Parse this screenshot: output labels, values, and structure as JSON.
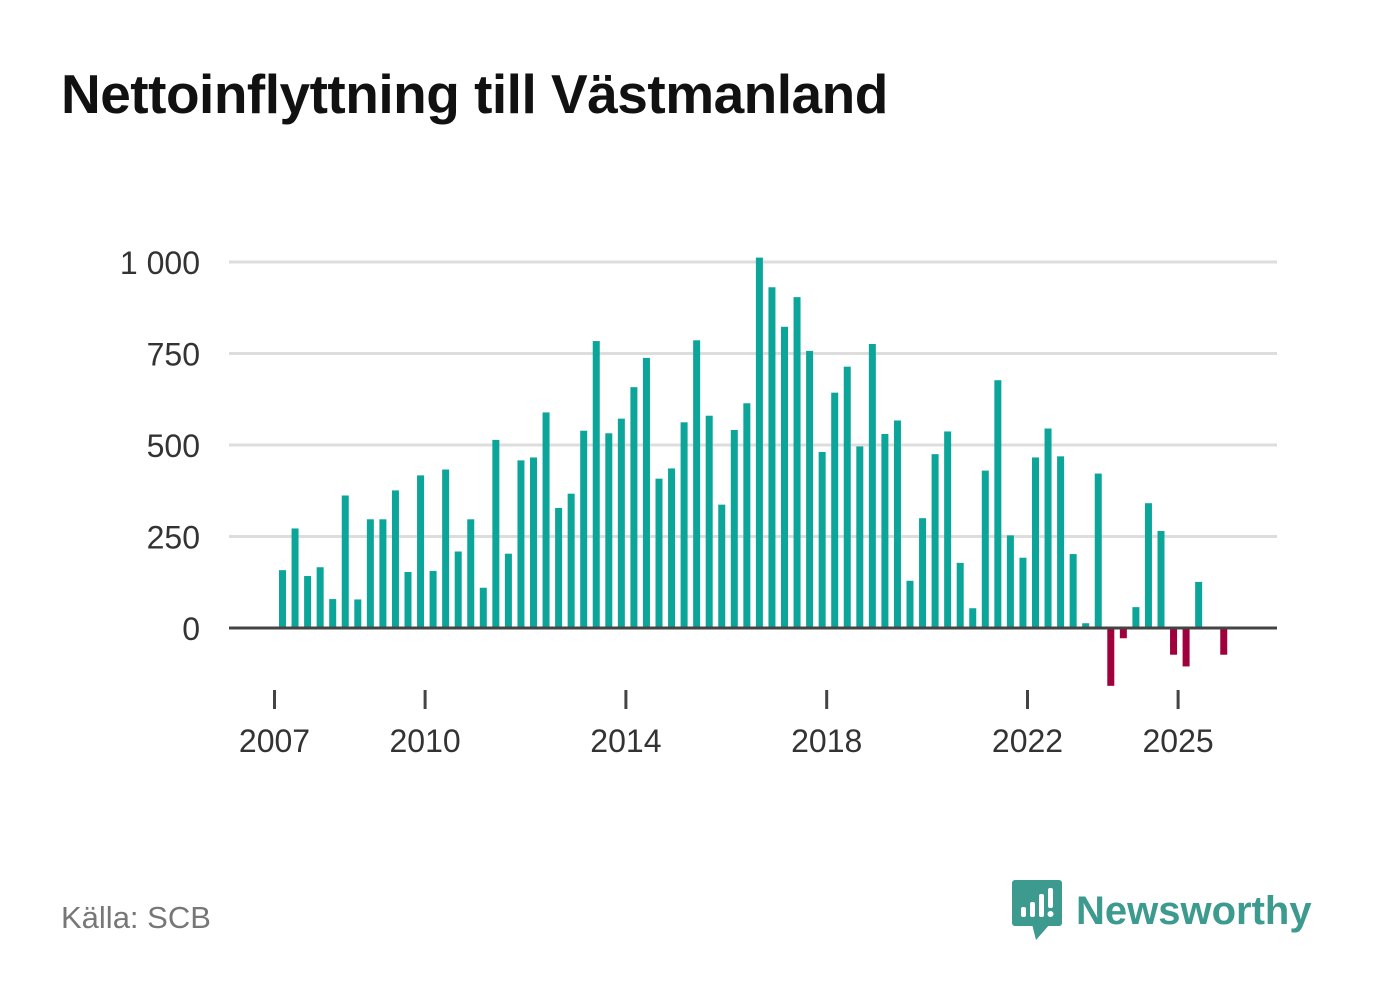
{
  "title": "Nettoinflyttning till Västmanland",
  "source": "Källa: SCB",
  "brand": {
    "name": "Newsworthy",
    "icon": "newsworthy-logo-icon",
    "color": "#3c9a8e"
  },
  "colors": {
    "positive": "#0ca59a",
    "negative": "#a0003b",
    "grid": "#dddddd",
    "axis": "#444444",
    "text": "#333333"
  },
  "chart_data": {
    "type": "bar",
    "title": "Nettoinflyttning till Västmanland",
    "xlabel": "",
    "ylabel": "",
    "ylim": [
      -200,
      1000
    ],
    "yticks": [
      0,
      250,
      500,
      750,
      1000
    ],
    "ytick_labels": [
      "0",
      "250",
      "500",
      "750",
      "1 000"
    ],
    "xticks": [
      {
        "label": "2007",
        "year": 2007
      },
      {
        "label": "2010",
        "year": 2010
      },
      {
        "label": "2014",
        "year": 2014
      },
      {
        "label": "2018",
        "year": 2018
      },
      {
        "label": "2022",
        "year": 2022
      },
      {
        "label": "2025",
        "year": 2025
      }
    ],
    "start_year": 2007,
    "start_quarter": 1,
    "period": "quarter",
    "values": [
      158,
      272,
      142,
      166,
      79,
      362,
      78,
      297,
      297,
      376,
      153,
      417,
      156,
      433,
      209,
      297,
      110,
      514,
      203,
      458,
      466,
      589,
      328,
      367,
      539,
      784,
      532,
      572,
      658,
      738,
      408,
      436,
      562,
      786,
      580,
      337,
      541,
      614,
      1012,
      931,
      823,
      904,
      757,
      481,
      643,
      714,
      496,
      776,
      530,
      567,
      129,
      300,
      475,
      537,
      178,
      54,
      430,
      677,
      253,
      192,
      466,
      545,
      469,
      202,
      13,
      422,
      -158,
      -28,
      57,
      341,
      265,
      -73,
      -105,
      126,
      null,
      -73
    ]
  }
}
